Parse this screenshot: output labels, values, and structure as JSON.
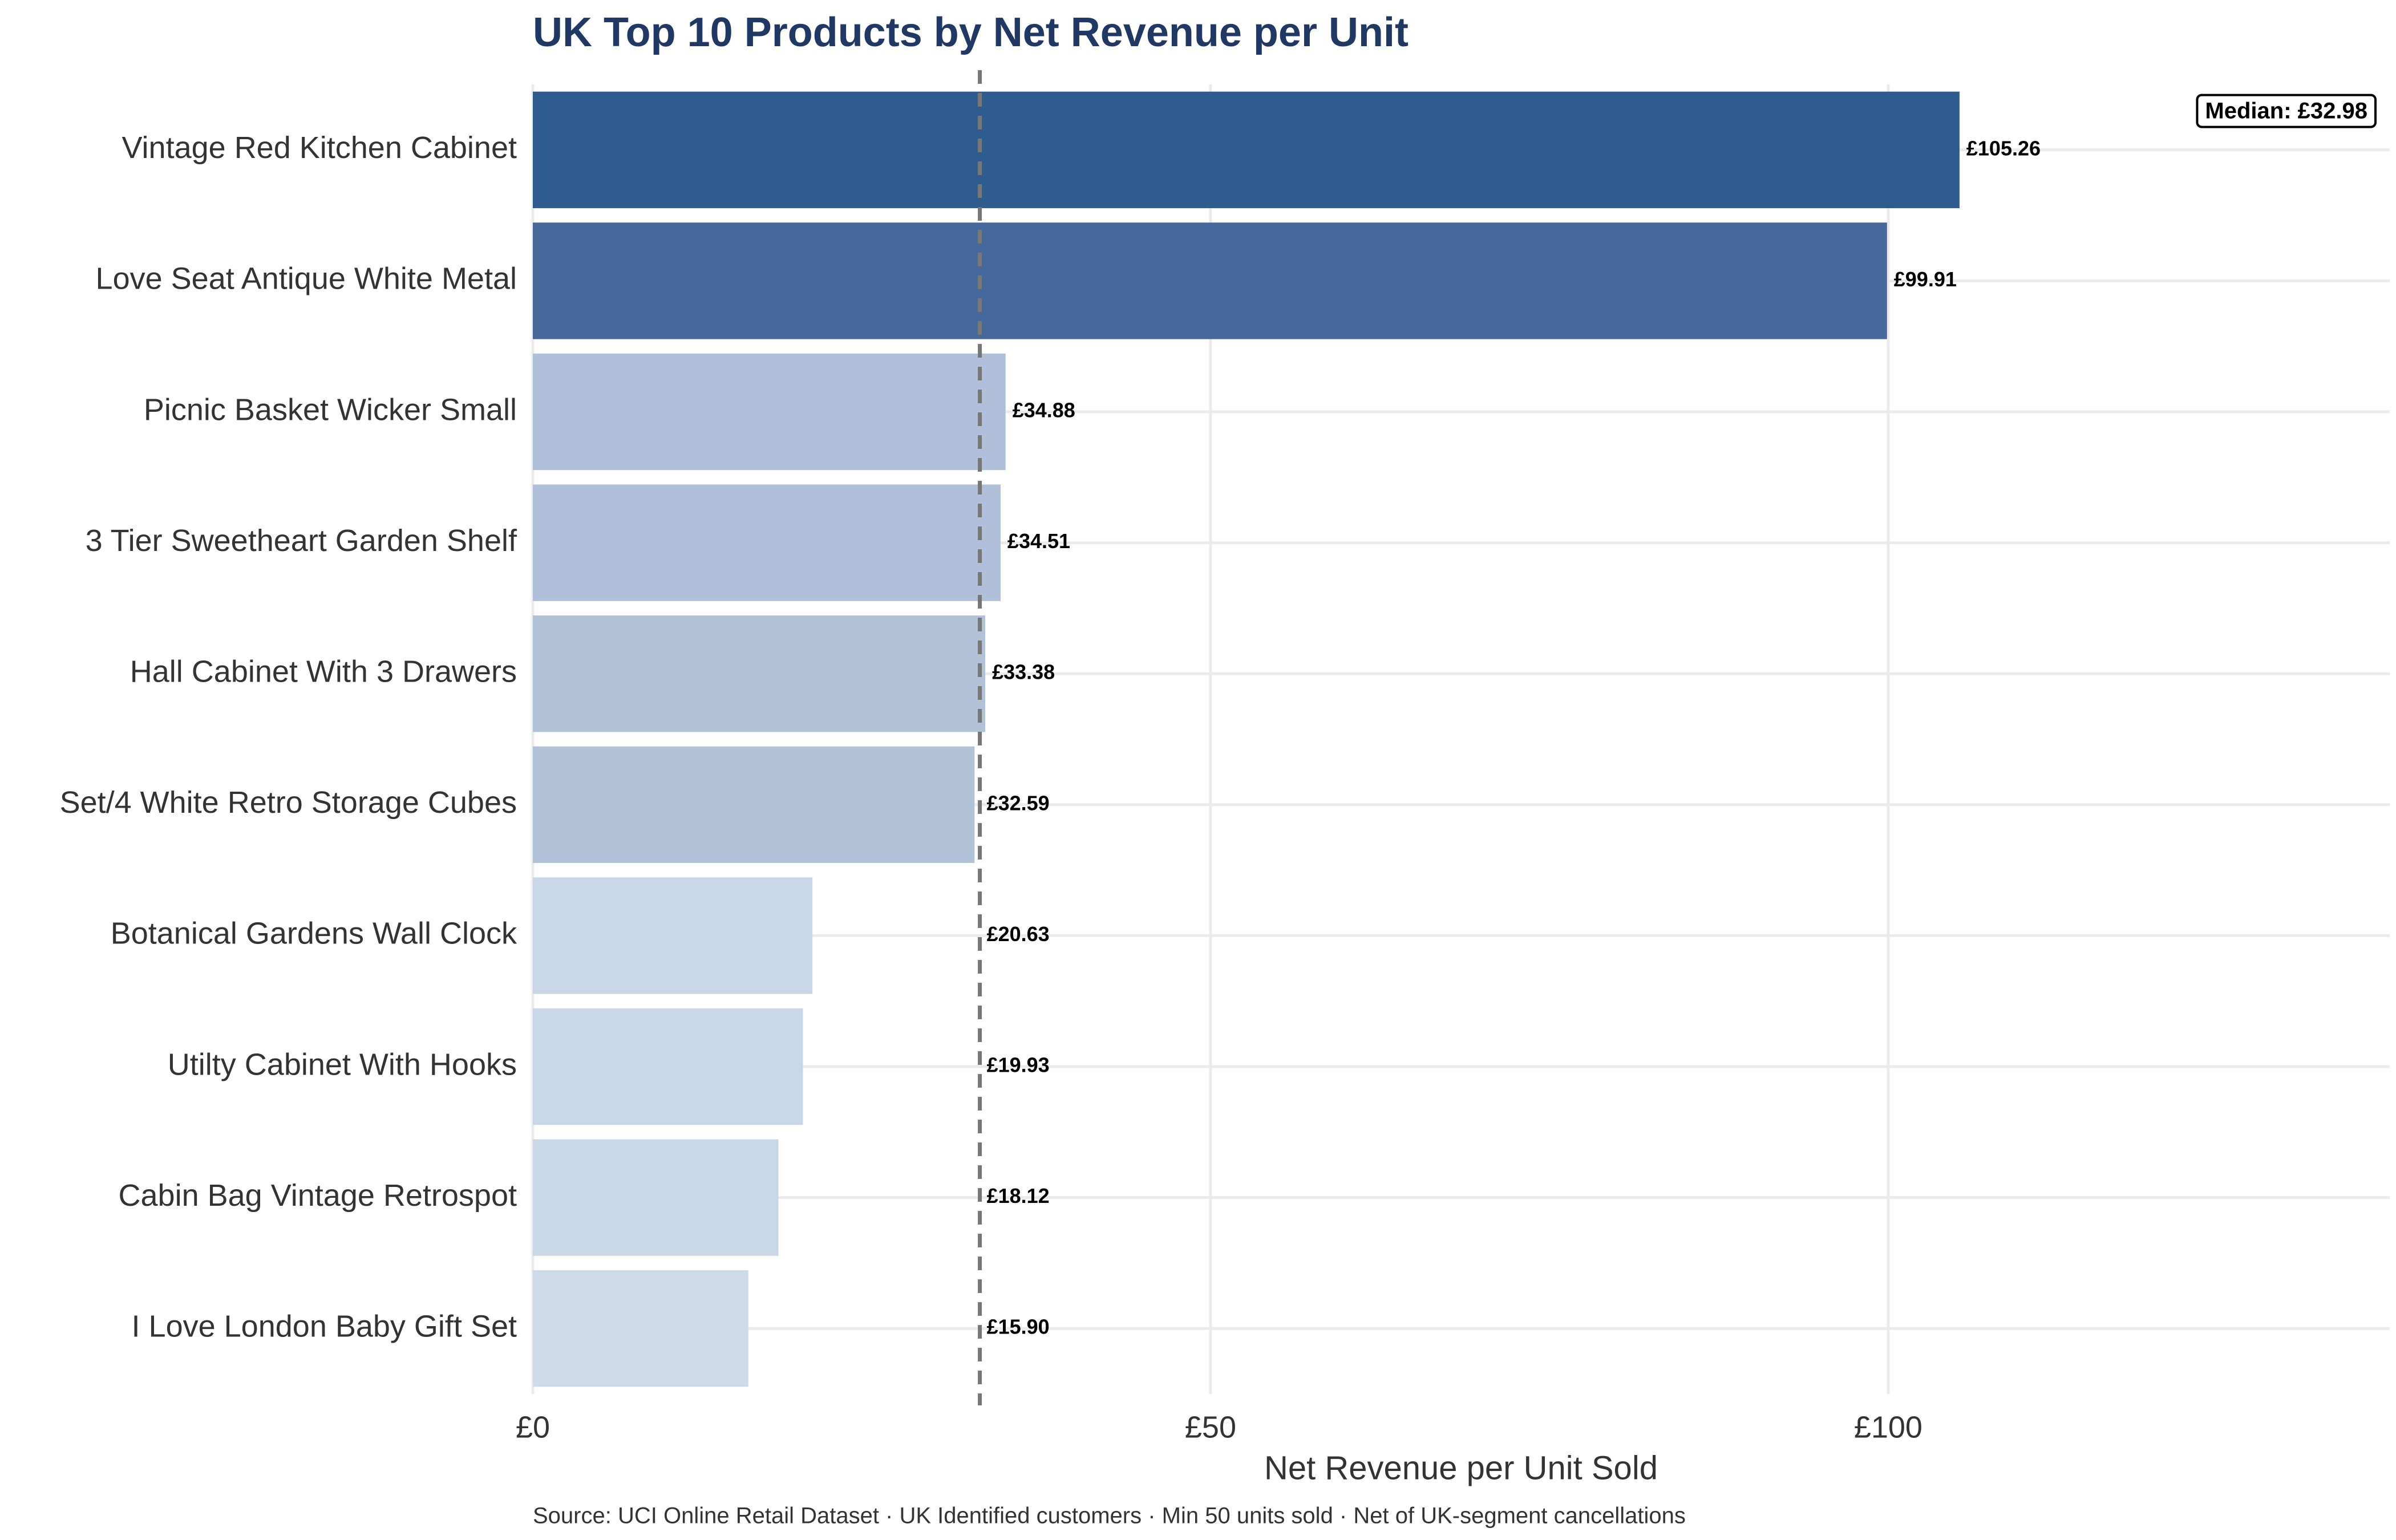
{
  "chart_data": {
    "type": "bar",
    "orientation": "horizontal",
    "title": "UK Top 10 Products by Net Revenue per Unit",
    "x_label": "Net Revenue per Unit Sold",
    "caption": "Source: UCI Online Retail Dataset · UK Identified customers · Min 50 units sold · Net of UK-segment cancellations",
    "categories": [
      "Vintage Red Kitchen Cabinet",
      "Love Seat Antique White Metal",
      "Picnic Basket Wicker Small",
      "3 Tier Sweetheart Garden Shelf",
      "Hall Cabinet With 3 Drawers",
      "Set/4 White Retro Storage Cubes",
      "Botanical Gardens Wall Clock",
      "Utilty Cabinet With Hooks",
      "Cabin Bag Vintage Retrospot",
      "I Love London Baby Gift Set"
    ],
    "values": [
      105.26,
      99.91,
      34.88,
      34.51,
      33.38,
      32.59,
      20.63,
      19.93,
      18.12,
      15.9
    ],
    "value_labels": [
      "£105.26",
      "£99.91",
      "£34.88",
      "£34.51",
      "£33.38",
      "£32.59",
      "£20.63",
      "£19.93",
      "£18.12",
      "£15.90"
    ],
    "colors": [
      "#2e5c8f",
      "#47689a",
      "#afc0d8",
      "#afc0d8",
      "#b2c2d9",
      "#b2c2d9",
      "#c9d6e5",
      "#c9d6e5",
      "#cad7e6",
      "#cfdbe8"
    ],
    "median": 32.98,
    "median_label": "Median: £32.98",
    "xlim": [
      0,
      137
    ],
    "xticks": [
      {
        "value": 0,
        "label": "£0"
      },
      {
        "value": 50,
        "label": "£50"
      },
      {
        "value": 100,
        "label": "£100"
      }
    ],
    "grid": true
  }
}
